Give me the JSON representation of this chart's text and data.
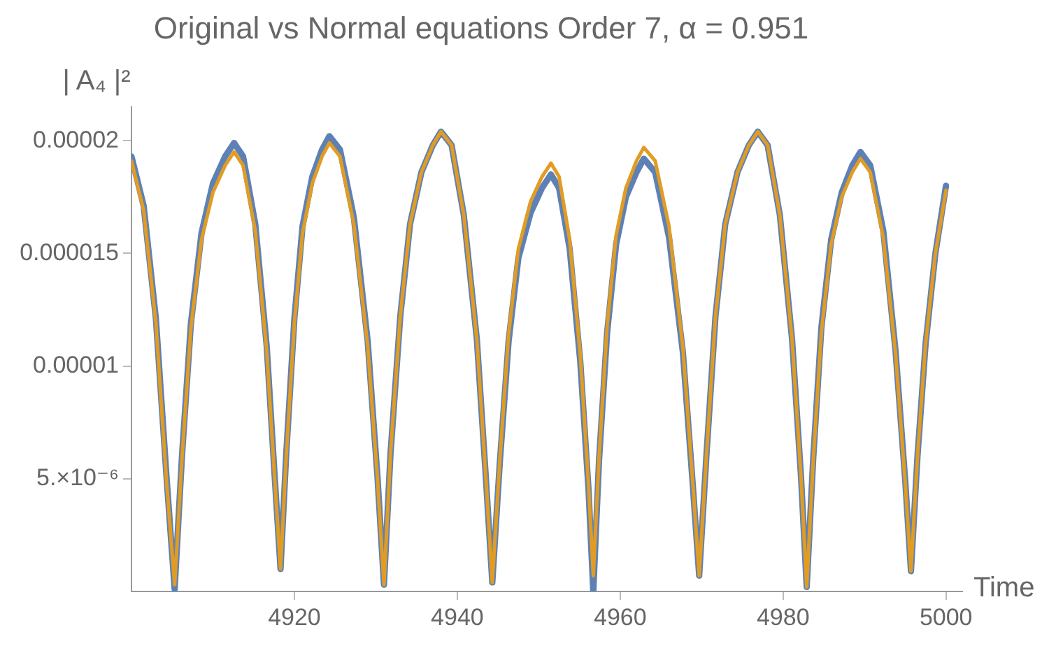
{
  "chart_data": {
    "type": "line",
    "title": "Original vs Normal equations Order 7, α = 0.951",
    "xlabel": "Time",
    "ylabel": "| A₄ |²",
    "x": [
      4900,
      4901.5,
      4903,
      4904.3,
      4905.3,
      4906.2,
      4907.3,
      4908.6,
      4910,
      4911.5,
      4912.6,
      4913.7,
      4915.2,
      4916.6,
      4917.6,
      4918.3,
      4919,
      4920,
      4921,
      4922.2,
      4923.4,
      4924.3,
      4925.6,
      4927.3,
      4929,
      4930.2,
      4931,
      4931.8,
      4933,
      4934.2,
      4935.6,
      4937,
      4938,
      4939.3,
      4940.8,
      4942.4,
      4943.5,
      4944.3,
      4945.2,
      4946.3,
      4947.5,
      4949,
      4950.4,
      4951.5,
      4952.5,
      4953.8,
      4955.1,
      4956.1,
      4956.7,
      4957.4,
      4958.4,
      4959.5,
      4960.7,
      4962,
      4962.9,
      4964.3,
      4966,
      4967.7,
      4968.9,
      4969.7,
      4970.6,
      4971.7,
      4972.9,
      4974.4,
      4975.8,
      4976.9,
      4978.1,
      4979.6,
      4981.1,
      4982.2,
      4982.9,
      4983.7,
      4984.7,
      4985.9,
      4987.2,
      4988.5,
      4989.5,
      4990.7,
      4992.3,
      4993.8,
      4995,
      4995.7,
      4996.5,
      4997.5,
      4998.7,
      5000
    ],
    "series": [
      {
        "color": "#5e81b5",
        "values": [
          1.93e-05,
          1.71e-05,
          1.21e-05,
          5.1e-06,
          1e-07,
          6e-06,
          1.19e-05,
          1.59e-05,
          1.81e-05,
          1.93e-05,
          1.99e-05,
          1.93e-05,
          1.63e-05,
          1.09e-05,
          5e-06,
          1e-06,
          6.1e-06,
          1.21e-05,
          1.62e-05,
          1.84e-05,
          1.96e-05,
          2.02e-05,
          1.96e-05,
          1.66e-05,
          1.11e-05,
          5.1e-06,
          3e-07,
          6.1e-06,
          1.22e-05,
          1.63e-05,
          1.86e-05,
          1.98e-05,
          2.04e-05,
          1.98e-05,
          1.67e-05,
          1.12e-05,
          5.1e-06,
          4e-07,
          5.6e-06,
          1.11e-05,
          1.48e-05,
          1.68e-05,
          1.79e-05,
          1.85e-05,
          1.79e-05,
          1.52e-05,
          1.02e-05,
          4.6e-06,
          0,
          5.8e-06,
          1.15e-05,
          1.54e-05,
          1.75e-05,
          1.86e-05,
          1.92e-05,
          1.86e-05,
          1.57e-05,
          1.06e-05,
          4.8e-06,
          7e-07,
          6.1e-06,
          1.22e-05,
          1.63e-05,
          1.86e-05,
          1.98e-05,
          2.04e-05,
          1.98e-05,
          1.67e-05,
          1.12e-05,
          5.1e-06,
          2e-07,
          5.9e-06,
          1.17e-05,
          1.56e-05,
          1.77e-05,
          1.89e-05,
          1.95e-05,
          1.89e-05,
          1.6e-05,
          1.07e-05,
          4.9e-06,
          9e-07,
          6e-06,
          1.1e-05,
          1.5e-05,
          1.8e-05
        ]
      },
      {
        "color": "#e19c24",
        "values": [
          1.91e-05,
          1.69e-05,
          1.19e-05,
          4.9e-06,
          3e-07,
          5.9e-06,
          1.17e-05,
          1.56e-05,
          1.77e-05,
          1.89e-05,
          1.95e-05,
          1.89e-05,
          1.6e-05,
          1.07e-05,
          4.9e-06,
          1e-06,
          6e-06,
          1.19e-05,
          1.59e-05,
          1.81e-05,
          1.93e-05,
          1.99e-05,
          1.93e-05,
          1.63e-05,
          1.09e-05,
          5e-06,
          3e-07,
          6.1e-06,
          1.22e-05,
          1.63e-05,
          1.86e-05,
          1.98e-05,
          2.04e-05,
          1.98e-05,
          1.67e-05,
          1.12e-05,
          5.1e-06,
          4e-07,
          5.7e-06,
          1.14e-05,
          1.52e-05,
          1.73e-05,
          1.84e-05,
          1.9e-05,
          1.84e-05,
          1.56e-05,
          1.05e-05,
          4.8e-06,
          7e-07,
          5.9e-06,
          1.18e-05,
          1.58e-05,
          1.79e-05,
          1.91e-05,
          1.97e-05,
          1.91e-05,
          1.62e-05,
          1.08e-05,
          4.9e-06,
          7e-07,
          6.1e-06,
          1.22e-05,
          1.63e-05,
          1.86e-05,
          1.98e-05,
          2.04e-05,
          1.98e-05,
          1.67e-05,
          1.12e-05,
          5.1e-06,
          2e-07,
          5.8e-06,
          1.15e-05,
          1.54e-05,
          1.75e-05,
          1.86e-05,
          1.92e-05,
          1.86e-05,
          1.57e-05,
          1.06e-05,
          4.8e-06,
          9e-07,
          6e-06,
          1.1e-05,
          1.5e-05,
          1.78e-05
        ]
      }
    ],
    "xlim": [
      4900,
      5002
    ],
    "ylim": [
      0,
      2.15e-05
    ],
    "xticks": [
      4920,
      4940,
      4960,
      4980,
      5000
    ],
    "yticks": [
      {
        "value": 5e-06,
        "label": "5.×10⁻⁶"
      },
      {
        "value": 1e-05,
        "label": "0.00001"
      },
      {
        "value": 1.5e-05,
        "label": "0.000015"
      },
      {
        "value": 2e-05,
        "label": "0.00002"
      }
    ],
    "grid": false,
    "marker": "none"
  }
}
